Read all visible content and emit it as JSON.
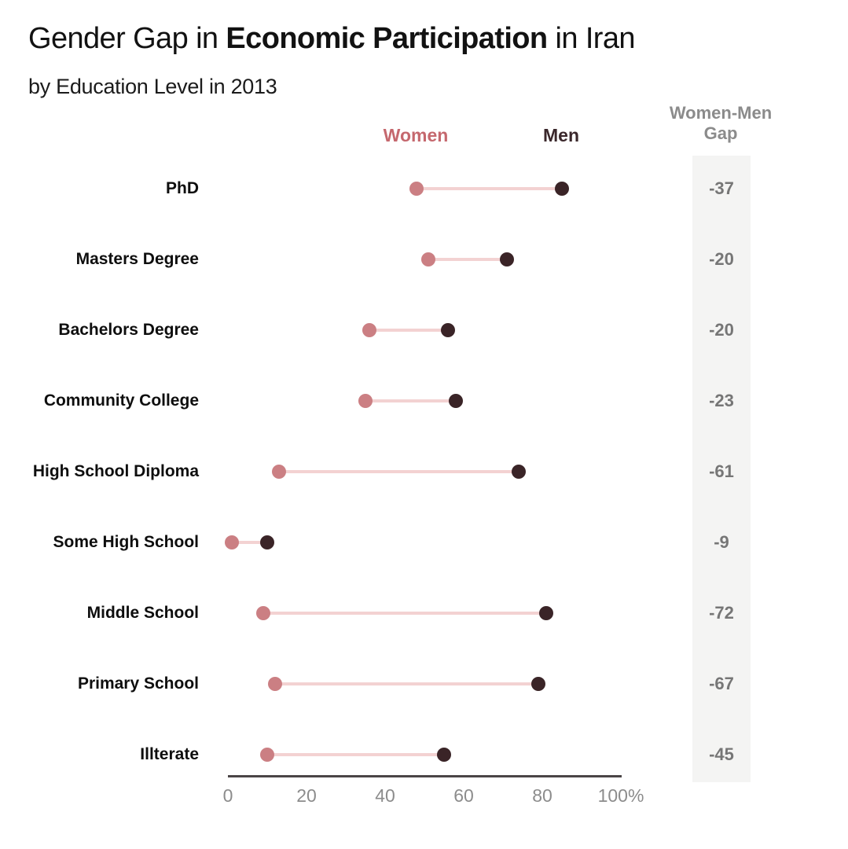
{
  "header": {
    "title_prefix": "Gender Gap in ",
    "title_bold": "Economic Participation",
    "title_suffix": " in Iran",
    "subtitle": "by Education Level in 2013"
  },
  "legend": {
    "women_label": "Women",
    "men_label": "Men"
  },
  "gap_header": {
    "line1": "Women-Men",
    "line2": "Gap"
  },
  "colors": {
    "women": "#cb7f83",
    "men": "#3a2427",
    "women_text": "#c5686e",
    "men_text": "#3a272b",
    "connector": "#f3d2d2",
    "gap_text": "#767676",
    "gap_header_text": "#8b8b8b",
    "gap_panel_bg": "#f4f4f3",
    "axis_line": "#4a4546",
    "tick_text": "#8c8c8c",
    "label_text": "#0e0e0e"
  },
  "chart_data": {
    "type": "dumbbell",
    "title": "Gender Gap in Economic Participation in Iran",
    "subtitle": "by Education Level in 2013",
    "series_names": [
      "Women",
      "Men"
    ],
    "xlim": [
      0,
      100
    ],
    "x_ticks": [
      "0",
      "20",
      "40",
      "60",
      "80",
      "100%"
    ],
    "x_tick_values": [
      0,
      20,
      40,
      60,
      80,
      100
    ],
    "grid": false,
    "legend_position": "top",
    "gap_column_header": "Women-Men Gap",
    "rows": [
      {
        "label": "PhD",
        "women": 48,
        "men": 85,
        "gap": "-37"
      },
      {
        "label": "Masters Degree",
        "women": 51,
        "men": 71,
        "gap": "-20"
      },
      {
        "label": "Bachelors Degree",
        "women": 36,
        "men": 56,
        "gap": "-20"
      },
      {
        "label": "Community College",
        "women": 35,
        "men": 58,
        "gap": "-23"
      },
      {
        "label": "High School Diploma",
        "women": 13,
        "men": 74,
        "gap": "-61"
      },
      {
        "label": "Some High School",
        "women": 1,
        "men": 10,
        "gap": "-9"
      },
      {
        "label": "Middle School",
        "women": 9,
        "men": 81,
        "gap": "-72"
      },
      {
        "label": "Primary School",
        "women": 12,
        "men": 79,
        "gap": "-67"
      },
      {
        "label": "Illterate",
        "women": 10,
        "men": 55,
        "gap": "-45"
      }
    ]
  }
}
